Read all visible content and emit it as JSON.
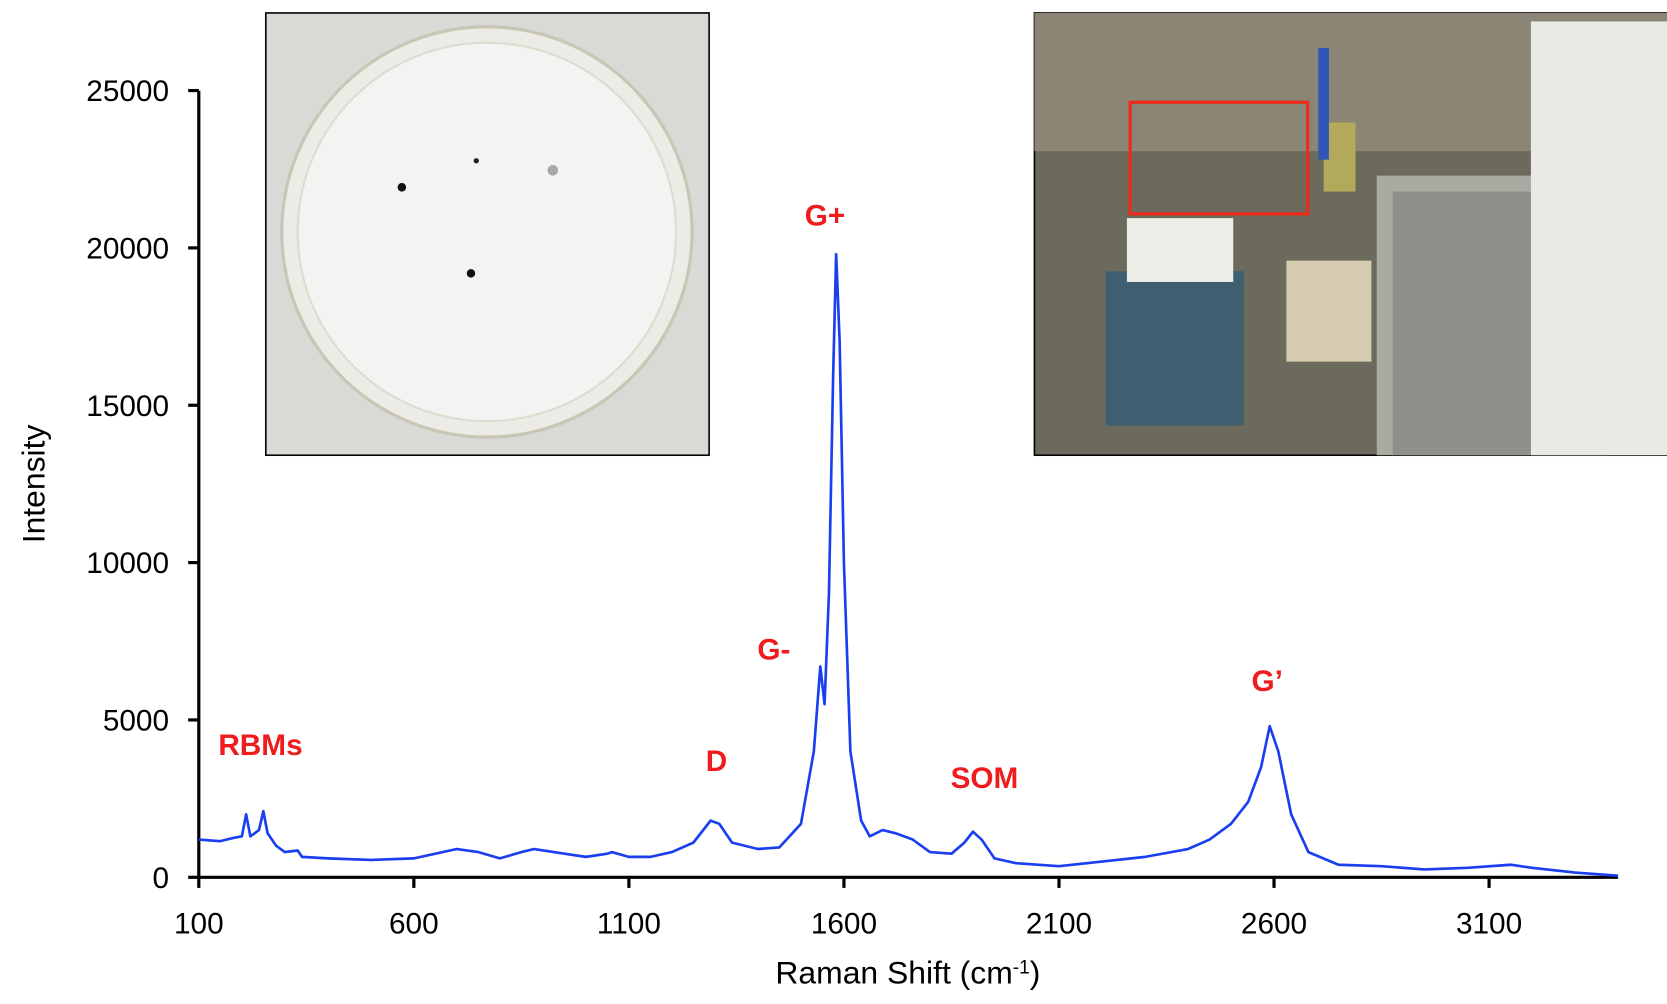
{
  "chart_data": {
    "type": "line",
    "xlabel_parts": [
      "Raman Shift (cm",
      "-1",
      ")"
    ],
    "ylabel": "Intensity",
    "xlim": [
      100,
      3400
    ],
    "ylim": [
      0,
      25000
    ],
    "xticks": [
      100,
      600,
      1100,
      1600,
      2100,
      2600,
      3100
    ],
    "yticks": [
      0,
      5000,
      10000,
      15000,
      20000,
      25000
    ],
    "annotations": [
      "RBMs",
      "D",
      "G-",
      "G+",
      "SOM",
      "G’"
    ],
    "annotation_color": "#ee1c1c",
    "series": [
      {
        "color": "#1a3ff0",
        "x": [
          100,
          150,
          180,
          200,
          210,
          220,
          240,
          250,
          260,
          280,
          300,
          330,
          340,
          400,
          500,
          600,
          650,
          700,
          750,
          800,
          850,
          880,
          950,
          1000,
          1050,
          1060,
          1100,
          1150,
          1200,
          1250,
          1290,
          1310,
          1340,
          1400,
          1450,
          1500,
          1530,
          1545,
          1555,
          1565,
          1575,
          1582,
          1590,
          1600,
          1615,
          1640,
          1660,
          1690,
          1720,
          1760,
          1800,
          1850,
          1880,
          1900,
          1920,
          1950,
          2000,
          2100,
          2200,
          2300,
          2400,
          2450,
          2500,
          2540,
          2570,
          2590,
          2610,
          2640,
          2680,
          2750,
          2850,
          2950,
          3050,
          3150,
          3200,
          3300,
          3400
        ],
        "values": [
          1200,
          1150,
          1250,
          1300,
          2000,
          1300,
          1500,
          2100,
          1400,
          1000,
          800,
          850,
          650,
          600,
          550,
          600,
          750,
          900,
          800,
          600,
          800,
          900,
          750,
          650,
          750,
          800,
          650,
          650,
          800,
          1100,
          1800,
          1700,
          1100,
          900,
          950,
          1700,
          4000,
          6700,
          5500,
          9000,
          16000,
          19800,
          17000,
          10000,
          4000,
          1800,
          1300,
          1500,
          1400,
          1200,
          800,
          750,
          1100,
          1450,
          1200,
          600,
          450,
          350,
          500,
          650,
          900,
          1200,
          1700,
          2400,
          3500,
          4800,
          4000,
          2000,
          800,
          400,
          350,
          250,
          300,
          400,
          300,
          150,
          50
        ]
      }
    ]
  }
}
